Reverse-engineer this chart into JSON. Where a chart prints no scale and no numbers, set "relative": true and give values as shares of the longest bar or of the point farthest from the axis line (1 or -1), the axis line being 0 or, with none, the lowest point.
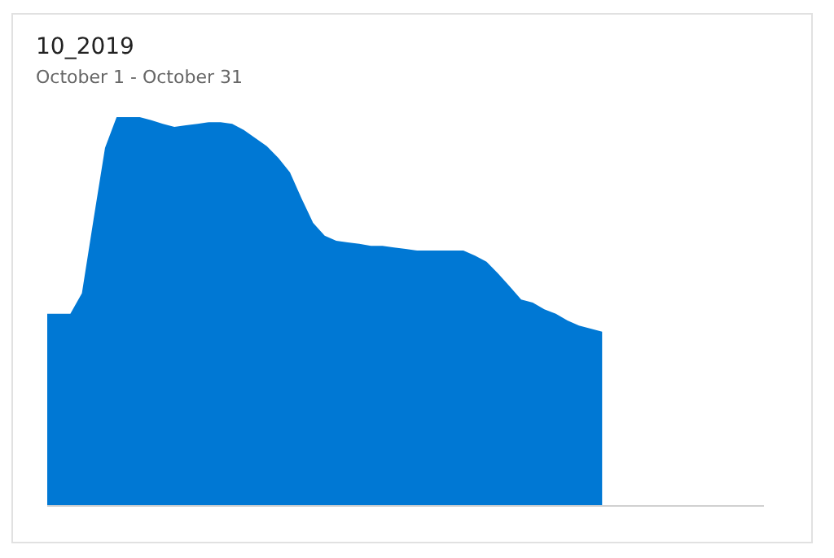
{
  "chart_data": {
    "type": "area",
    "title": "10_2019",
    "subtitle": "October 1 - October 31",
    "relative": true,
    "tick_labels": false,
    "grid": false,
    "legend": false,
    "categories": [
      null,
      null,
      null,
      null,
      null,
      null,
      null,
      null,
      null,
      null,
      null,
      null,
      null,
      null,
      null,
      null,
      null,
      null,
      null,
      null,
      null,
      null,
      null,
      null,
      null,
      null,
      null,
      null,
      null,
      null,
      null,
      null,
      null,
      null,
      null,
      null,
      null,
      null,
      null,
      null,
      null,
      null,
      null,
      null,
      null,
      null,
      null,
      null,
      null,
      null,
      null,
      null,
      null,
      null,
      null,
      null,
      null,
      null,
      null,
      null,
      null,
      null,
      null
    ],
    "series": [
      {
        "color": "#0078d4",
        "values": [
          0.494,
          0.494,
          0.494,
          0.547,
          0.736,
          0.921,
          1,
          1,
          1,
          0.992,
          0.983,
          0.975,
          0.979,
          0.983,
          0.987,
          0.987,
          0.983,
          0.967,
          0.946,
          0.925,
          0.895,
          0.858,
          0.791,
          0.728,
          0.695,
          0.682,
          0.678,
          0.674,
          0.669,
          0.669,
          0.665,
          0.661,
          0.657,
          0.657,
          0.657,
          0.657,
          0.657,
          0.644,
          0.628,
          0.598,
          0.565,
          0.531,
          0.523,
          0.506,
          0.494,
          0.477,
          0.464,
          0.456,
          0.448,
          null,
          null,
          null,
          null,
          null,
          null,
          null,
          null,
          null,
          null,
          null,
          null,
          null,
          null
        ]
      }
    ]
  }
}
